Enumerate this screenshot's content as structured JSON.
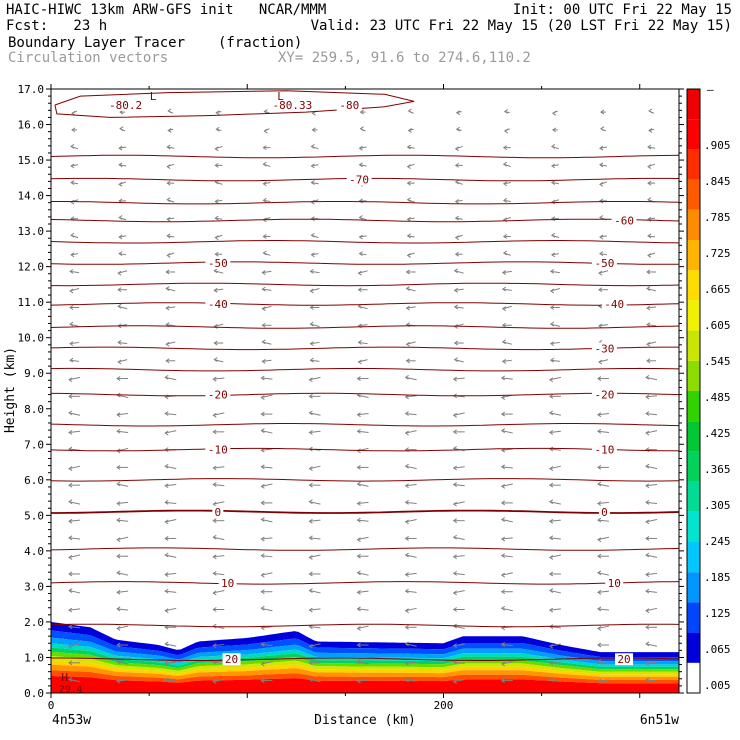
{
  "header": {
    "line1_left": "HAIC-HIWC 13km ARW-GFS init   NCAR/MMM",
    "line1_right": "Init: 00 UTC Fri 22 May 15",
    "line2_left": "Fcst:   23 h",
    "line2_right": "Valid: 23 UTC Fri 22 May 15 (20 LST Fri 22 May 15)",
    "line3_field": "Boundary Layer Tracer",
    "line3_units": "(fraction)",
    "line4_field": "Circulation vectors",
    "line4_xy": "XY= 259.5, 91.6 to 274.6,110.2"
  },
  "colors": {
    "contour": "#800000",
    "vector": "#808080",
    "frame": "#000000"
  },
  "chart_data": {
    "type": "heatmap",
    "xlabel": "Distance (km)",
    "ylabel": "Height (km)",
    "xlim": [
      0,
      320
    ],
    "ylim": [
      0,
      17
    ],
    "x_ticks": [
      {
        "value": 0,
        "label": "0"
      },
      {
        "value": 200,
        "label": "200"
      }
    ],
    "x_end_labels": {
      "left": "4n53w",
      "right": "6n51w"
    },
    "y_ticks": [
      "0.0",
      "1.0",
      "2.0",
      "3.0",
      "4.0",
      "5.0",
      "6.0",
      "7.0",
      "8.0",
      "9.0",
      "10.0",
      "11.0",
      "12.0",
      "13.0",
      "14.0",
      "15.0",
      "16.0",
      "17.0"
    ],
    "colorbar": {
      "label_values": [
        ".905",
        ".845",
        ".785",
        ".725",
        ".665",
        ".605",
        ".545",
        ".485",
        ".425",
        ".365",
        ".305",
        ".245",
        ".185",
        ".125",
        ".065",
        ".005"
      ],
      "top_label": "–",
      "bins": [
        "#ffffff",
        "#0000dd",
        "#0046ff",
        "#0096ff",
        "#00c8ff",
        "#00e4d0",
        "#00dc96",
        "#00d25a",
        "#00c832",
        "#32d200",
        "#8cdc00",
        "#c8e600",
        "#f0f000",
        "#ffdc00",
        "#ffb400",
        "#ff8c00",
        "#ff5a00",
        "#ff2d00",
        "#ff0000",
        "#f00000"
      ]
    },
    "temperature_contours": [
      {
        "y": 15.1
      },
      {
        "y": 14.45
      },
      {
        "y": 13.8
      },
      {
        "y": 13.3
      },
      {
        "y": 12.7
      },
      {
        "y": 12.1
      },
      {
        "y": 11.5
      },
      {
        "y": 10.95
      },
      {
        "y": 10.3
      },
      {
        "y": 9.7
      },
      {
        "y": 9.1
      },
      {
        "y": 8.4
      },
      {
        "y": 7.55
      },
      {
        "y": 6.85
      },
      {
        "y": 6.0
      },
      {
        "y": 5.1
      },
      {
        "y": 4.05
      },
      {
        "y": 3.1
      },
      {
        "y": 1.9
      },
      {
        "y": 0.95
      }
    ],
    "contour_labels": [
      {
        "x": 38,
        "y": 16.55,
        "text": "-80.2"
      },
      {
        "x": 123,
        "y": 16.55,
        "text": "-80.33"
      },
      {
        "x": 152,
        "y": 16.55,
        "text": "-80"
      },
      {
        "x": 157,
        "y": 14.45,
        "text": "-70"
      },
      {
        "x": 292,
        "y": 13.3,
        "text": "-60"
      },
      {
        "x": 85,
        "y": 12.1,
        "text": "-50"
      },
      {
        "x": 282,
        "y": 12.1,
        "text": "-50"
      },
      {
        "x": 85,
        "y": 10.95,
        "text": "-40"
      },
      {
        "x": 287,
        "y": 10.95,
        "text": "-40"
      },
      {
        "x": 282,
        "y": 9.7,
        "text": "-30"
      },
      {
        "x": 85,
        "y": 8.4,
        "text": "-20"
      },
      {
        "x": 282,
        "y": 8.4,
        "text": "-20"
      },
      {
        "x": 85,
        "y": 6.85,
        "text": "-10"
      },
      {
        "x": 282,
        "y": 6.85,
        "text": "-10"
      },
      {
        "x": 85,
        "y": 5.1,
        "text": "0"
      },
      {
        "x": 282,
        "y": 5.1,
        "text": "0"
      },
      {
        "x": 90,
        "y": 3.1,
        "text": "10"
      },
      {
        "x": 287,
        "y": 3.1,
        "text": "10"
      },
      {
        "x": 92,
        "y": 0.95,
        "text": "20"
      },
      {
        "x": 292,
        "y": 0.95,
        "text": "20"
      }
    ],
    "extrema_labels": [
      {
        "x": 52,
        "y": 16.8,
        "text": "L"
      },
      {
        "x": 117,
        "y": 16.8,
        "text": "L"
      },
      {
        "x": 7,
        "y": 0.45,
        "text": "H"
      }
    ],
    "inversion_label": {
      "x": 10,
      "y": 0.1,
      "text": "29.4"
    },
    "tracer_top_km": [
      {
        "x": 0,
        "y": 2.0
      },
      {
        "x": 20,
        "y": 1.85
      },
      {
        "x": 33,
        "y": 1.5
      },
      {
        "x": 55,
        "y": 1.35
      },
      {
        "x": 65,
        "y": 1.2
      },
      {
        "x": 75,
        "y": 1.45
      },
      {
        "x": 100,
        "y": 1.55
      },
      {
        "x": 125,
        "y": 1.75
      },
      {
        "x": 135,
        "y": 1.45
      },
      {
        "x": 200,
        "y": 1.4
      },
      {
        "x": 210,
        "y": 1.6
      },
      {
        "x": 240,
        "y": 1.6
      },
      {
        "x": 260,
        "y": 1.35
      },
      {
        "x": 280,
        "y": 1.15
      },
      {
        "x": 320,
        "y": 1.15
      }
    ]
  }
}
